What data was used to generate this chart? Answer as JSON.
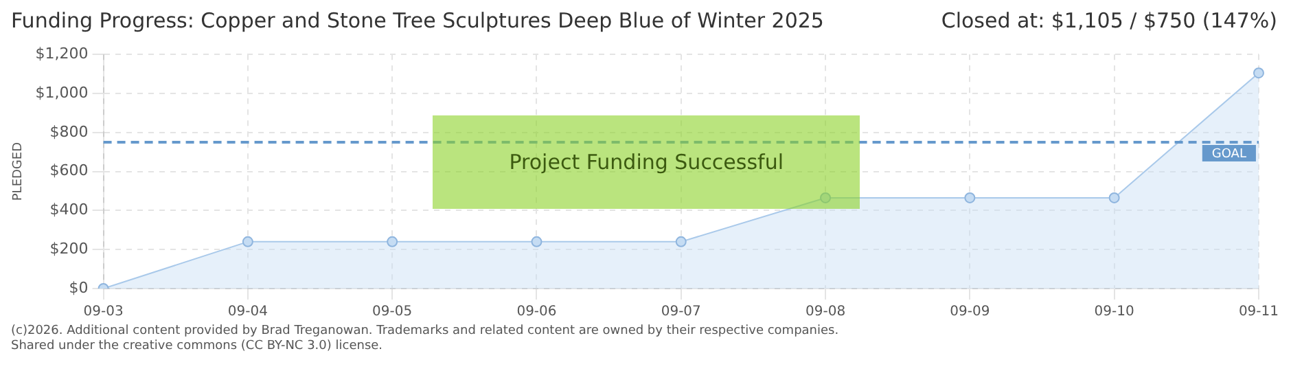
{
  "chart_data": {
    "type": "area",
    "title": "Funding Progress: Copper and Stone Tree Sculptures Deep Blue of Winter 2025",
    "subtitle": "Closed at: $1,105 / $750 (147%)",
    "ylabel": "PLEDGED",
    "categories": [
      "09-03",
      "09-04",
      "09-05",
      "09-06",
      "09-07",
      "09-08",
      "09-09",
      "09-10",
      "09-11"
    ],
    "series": [
      {
        "color": "#a9c9ea",
        "values": [
          0,
          240,
          240,
          240,
          240,
          465,
          465,
          465,
          1105
        ]
      }
    ],
    "ylim": [
      0,
      1200
    ],
    "yticks": [
      {
        "value": 0,
        "label": "$0"
      },
      {
        "value": 200,
        "label": "$200"
      },
      {
        "value": 400,
        "label": "$400"
      },
      {
        "value": 600,
        "label": "$600"
      },
      {
        "value": 800,
        "label": "$800"
      },
      {
        "value": 1000,
        "label": "$1,000"
      },
      {
        "value": 1200,
        "label": "$1,200"
      }
    ],
    "grid": true,
    "legend": false,
    "marker": "circle",
    "ref_lines": [
      {
        "axis": "y",
        "value": 750,
        "label": "GOAL",
        "color": "#6699cc",
        "line_style": "dashed"
      }
    ],
    "annotations": [
      "Project Funding Successful",
      "(c)2026. Additional content provided by Brad Treganowan. Trademarks and related content are owned by their respective companies.",
      "Shared under the creative commons (CC BY-NC 3.0) license."
    ]
  }
}
